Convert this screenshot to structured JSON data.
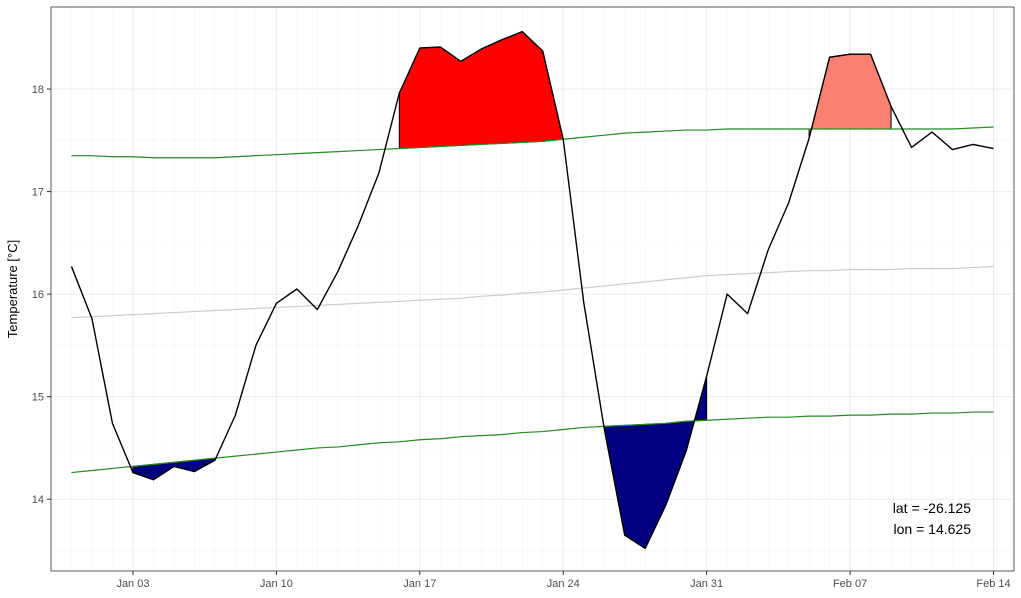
{
  "chart_data": {
    "type": "line",
    "title": "",
    "xlabel": "",
    "ylabel": "Temperature [°C]",
    "x_start": "2021-12-31",
    "xlim": [
      "2021-12-30",
      "2022-02-15"
    ],
    "ylim": [
      13.3,
      18.8
    ],
    "x_ticks": [
      {
        "label": "Jan 03",
        "date": "2022-01-03"
      },
      {
        "label": "Jan 10",
        "date": "2022-01-10"
      },
      {
        "label": "Jan 17",
        "date": "2022-01-17"
      },
      {
        "label": "Jan 24",
        "date": "2022-01-24"
      },
      {
        "label": "Jan 31",
        "date": "2022-01-31"
      },
      {
        "label": "Feb 07",
        "date": "2022-02-07"
      },
      {
        "label": "Feb 14",
        "date": "2022-02-14"
      }
    ],
    "y_ticks": [
      14,
      15,
      16,
      17,
      18
    ],
    "grid": true,
    "series": [
      {
        "role": "temperature",
        "color": "#000000",
        "values": [
          16.27,
          15.76,
          14.74,
          14.26,
          14.19,
          14.32,
          14.27,
          14.38,
          14.82,
          15.5,
          15.91,
          16.05,
          15.85,
          16.22,
          16.67,
          17.18,
          17.96,
          18.4,
          18.41,
          18.27,
          18.39,
          18.48,
          18.56,
          18.37,
          17.51,
          15.92,
          14.69,
          13.65,
          13.52,
          13.94,
          14.47,
          15.2,
          16.0,
          15.81,
          16.43,
          16.89,
          17.52,
          18.31,
          18.34,
          18.34,
          17.83,
          17.43,
          17.58,
          17.41,
          17.46,
          17.42
        ]
      },
      {
        "role": "climatology",
        "color": "#cccccc",
        "values": [
          15.77,
          15.78,
          15.79,
          15.8,
          15.81,
          15.82,
          15.83,
          15.84,
          15.85,
          15.86,
          15.87,
          15.88,
          15.89,
          15.9,
          15.91,
          15.92,
          15.93,
          15.94,
          15.95,
          15.96,
          15.98,
          15.99,
          16.01,
          16.02,
          16.04,
          16.06,
          16.08,
          16.1,
          16.12,
          16.14,
          16.16,
          16.18,
          16.19,
          16.2,
          16.21,
          16.22,
          16.23,
          16.23,
          16.24,
          16.24,
          16.24,
          16.25,
          16.25,
          16.25,
          16.26,
          16.27
        ]
      },
      {
        "role": "threshold-upper",
        "color": "#228b22",
        "values": [
          17.35,
          17.35,
          17.34,
          17.34,
          17.33,
          17.33,
          17.33,
          17.33,
          17.34,
          17.35,
          17.36,
          17.37,
          17.38,
          17.39,
          17.4,
          17.41,
          17.42,
          17.43,
          17.44,
          17.45,
          17.46,
          17.47,
          17.48,
          17.49,
          17.51,
          17.53,
          17.55,
          17.57,
          17.58,
          17.59,
          17.6,
          17.6,
          17.61,
          17.61,
          17.61,
          17.61,
          17.61,
          17.61,
          17.61,
          17.61,
          17.61,
          17.61,
          17.61,
          17.61,
          17.62,
          17.63
        ]
      },
      {
        "role": "threshold-lower",
        "color": "#228b22",
        "values": [
          14.26,
          14.28,
          14.3,
          14.32,
          14.34,
          14.36,
          14.38,
          14.4,
          14.42,
          14.44,
          14.46,
          14.48,
          14.5,
          14.51,
          14.53,
          14.55,
          14.56,
          14.58,
          14.59,
          14.61,
          14.62,
          14.63,
          14.65,
          14.66,
          14.68,
          14.7,
          14.71,
          14.72,
          14.73,
          14.74,
          14.76,
          14.77,
          14.78,
          14.79,
          14.8,
          14.8,
          14.81,
          14.81,
          14.82,
          14.82,
          14.83,
          14.83,
          14.84,
          14.84,
          14.85,
          14.85
        ]
      }
    ],
    "fills": [
      {
        "role": "cold-spell",
        "color": "#000080",
        "from_day": 3,
        "to_day": 7
      },
      {
        "role": "heatwave",
        "color": "#ff0000",
        "from_day": 16,
        "to_day": 24
      },
      {
        "role": "cold-spell",
        "color": "#000080",
        "from_day": 26,
        "to_day": 31
      },
      {
        "role": "heatwave-moderate",
        "color": "#fa8072",
        "from_day": 36,
        "to_day": 40
      }
    ],
    "annotations": [
      "lat = -26.125",
      "lon = 14.625"
    ]
  }
}
